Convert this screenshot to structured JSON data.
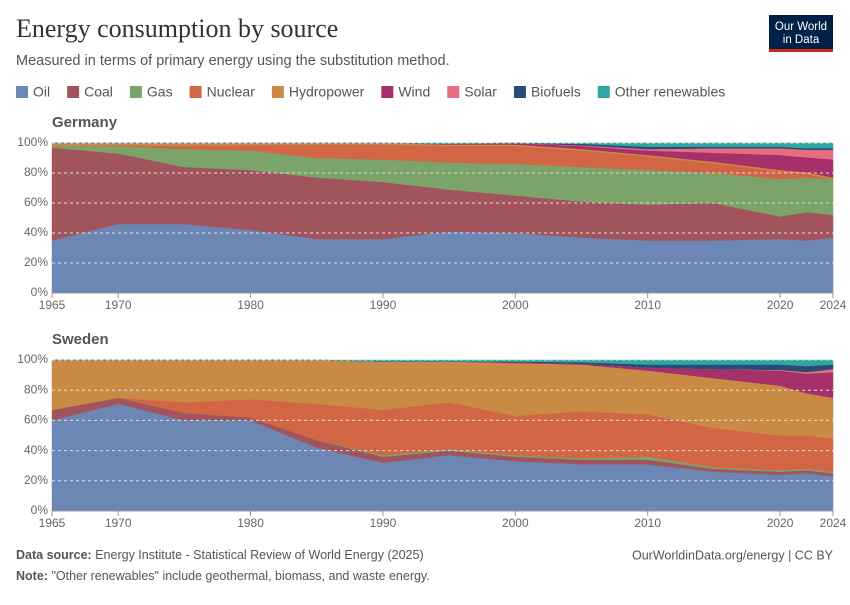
{
  "header": {
    "title": "Energy consumption by source",
    "subtitle": "Measured in terms of primary energy using the substitution method.",
    "logo_line1": "Our World",
    "logo_line2": "in Data"
  },
  "footer": {
    "source_label": "Data source:",
    "source": "Energy Institute - Statistical Review of World Energy (2025)",
    "link": "OurWorldinData.org/energy | CC BY",
    "note_label": "Note:",
    "note": "\"Other renewables\" include geothermal, biomass, and waste energy."
  },
  "chart_data": [
    {
      "type": "area",
      "stacked": true,
      "title": "Germany",
      "grid": true,
      "x": [
        1965,
        1970,
        1975,
        1980,
        1985,
        1990,
        1995,
        2000,
        2005,
        2010,
        2015,
        2020,
        2022,
        2024
      ],
      "xlim": [
        1965,
        2024
      ],
      "xticks": [
        1965,
        1970,
        1980,
        1990,
        2000,
        2010,
        2020,
        2024
      ],
      "ylim": [
        0,
        100
      ],
      "yticks": [
        {
          "value": 0,
          "label": "0%"
        },
        {
          "value": 20,
          "label": "20%"
        },
        {
          "value": 40,
          "label": "40%"
        },
        {
          "value": 60,
          "label": "60%"
        },
        {
          "value": 80,
          "label": "80%"
        },
        {
          "value": 100,
          "label": "100%"
        }
      ],
      "series": [
        {
          "name": "Oil",
          "color": "#6d87b5",
          "values": [
            35,
            46,
            46,
            42,
            36,
            36,
            41,
            40,
            37,
            35,
            35,
            36,
            35,
            37
          ]
        },
        {
          "name": "Coal",
          "color": "#a2545d",
          "values": [
            62,
            47,
            38,
            40,
            41,
            38,
            28,
            25,
            24,
            24,
            25,
            15,
            19,
            15
          ]
        },
        {
          "name": "Gas",
          "color": "#7ca36a",
          "values": [
            1,
            5,
            12,
            13,
            13,
            15,
            18,
            21,
            23,
            23,
            20,
            25,
            23,
            24
          ]
        },
        {
          "name": "Nuclear",
          "color": "#d26544",
          "values": [
            0,
            0.5,
            2,
            3.5,
            9,
            10,
            11,
            12,
            11,
            9,
            6.5,
            5,
            2.5,
            0
          ]
        },
        {
          "name": "Hydropower",
          "color": "#c98a45",
          "values": [
            2,
            1.5,
            2,
            1.5,
            1,
            1,
            1,
            1,
            1,
            1,
            1,
            1,
            1,
            1
          ]
        },
        {
          "name": "Wind",
          "color": "#a5306a",
          "values": [
            0,
            0,
            0,
            0,
            0,
            0,
            0.5,
            1,
            2,
            3,
            6,
            10,
            10,
            12
          ]
        },
        {
          "name": "Solar",
          "color": "#e56e80",
          "values": [
            0,
            0,
            0,
            0,
            0,
            0,
            0,
            0,
            0.5,
            1,
            3,
            4.5,
            5,
            6.5
          ]
        },
        {
          "name": "Biofuels",
          "color": "#2a4a77",
          "values": [
            0,
            0,
            0,
            0,
            0,
            0,
            0,
            0,
            1,
            1.5,
            1,
            1,
            1,
            1
          ]
        },
        {
          "name": "Other renewables",
          "color": "#2fa7a0",
          "values": [
            0,
            0,
            0,
            0,
            0,
            0,
            0.5,
            0,
            0.5,
            2.5,
            2.5,
            2.5,
            3.5,
            3.5
          ]
        }
      ]
    },
    {
      "type": "area",
      "stacked": true,
      "title": "Sweden",
      "grid": true,
      "x": [
        1965,
        1970,
        1975,
        1980,
        1985,
        1990,
        1995,
        2000,
        2005,
        2010,
        2015,
        2020,
        2022,
        2024
      ],
      "xlim": [
        1965,
        2024
      ],
      "xticks": [
        1965,
        1970,
        1980,
        1990,
        2000,
        2010,
        2020,
        2024
      ],
      "ylim": [
        0,
        100
      ],
      "yticks": [
        {
          "value": 0,
          "label": "0%"
        },
        {
          "value": 20,
          "label": "20%"
        },
        {
          "value": 40,
          "label": "40%"
        },
        {
          "value": 60,
          "label": "60%"
        },
        {
          "value": 80,
          "label": "80%"
        },
        {
          "value": 100,
          "label": "100%"
        }
      ],
      "series": [
        {
          "name": "Oil",
          "color": "#6d87b5",
          "values": [
            60,
            71,
            60,
            60,
            42,
            32,
            37,
            33,
            31,
            31,
            26,
            24,
            25,
            23
          ]
        },
        {
          "name": "Coal",
          "color": "#a2545d",
          "values": [
            7,
            4,
            5,
            2,
            5,
            4,
            3,
            3,
            3,
            3,
            2,
            2,
            2,
            2
          ]
        },
        {
          "name": "Gas",
          "color": "#7ca36a",
          "values": [
            0,
            0,
            0,
            0,
            0,
            1,
            1,
            1,
            1,
            2,
            1,
            1,
            1,
            1
          ]
        },
        {
          "name": "Nuclear",
          "color": "#d26544",
          "values": [
            0,
            0,
            7,
            12,
            24,
            30,
            31,
            26,
            31,
            28,
            26,
            23,
            22,
            22
          ]
        },
        {
          "name": "Hydropower",
          "color": "#c98a45",
          "values": [
            33,
            25,
            28,
            26,
            29,
            32,
            27,
            35,
            31,
            29,
            33,
            33,
            28,
            27
          ]
        },
        {
          "name": "Wind",
          "color": "#a5306a",
          "values": [
            0,
            0,
            0,
            0,
            0,
            0,
            0,
            0.5,
            0.5,
            2,
            6,
            10,
            13,
            17
          ]
        },
        {
          "name": "Solar",
          "color": "#e56e80",
          "values": [
            0,
            0,
            0,
            0,
            0,
            0,
            0,
            0,
            0,
            0,
            0,
            0.5,
            1,
            2
          ]
        },
        {
          "name": "Biofuels",
          "color": "#2a4a77",
          "values": [
            0,
            0,
            0,
            0,
            0,
            0,
            0,
            0.5,
            1,
            2,
            3,
            3.5,
            4,
            3
          ]
        },
        {
          "name": "Other renewables",
          "color": "#2fa7a0",
          "values": [
            0,
            0,
            0,
            0,
            0,
            1,
            1,
            1,
            1.5,
            3,
            3,
            3,
            4,
            3
          ]
        }
      ]
    }
  ]
}
